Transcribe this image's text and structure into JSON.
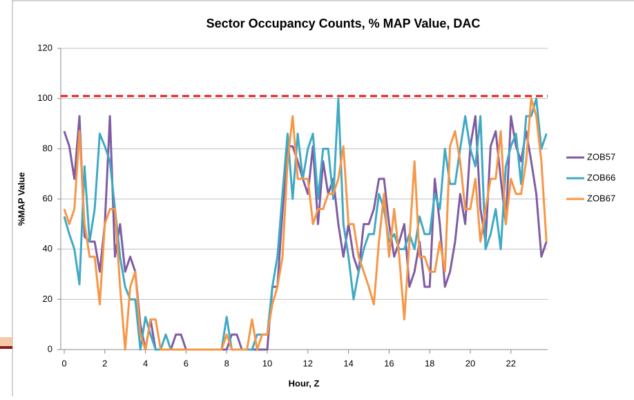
{
  "chart_data": {
    "type": "line",
    "title": "Sector Occupancy Counts, % MAP Value, DAC",
    "x_label": "Hour, Z",
    "y_label": "%MAP Value",
    "x": [
      0,
      0.25,
      0.5,
      0.75,
      1,
      1.25,
      1.5,
      1.75,
      2,
      2.25,
      2.5,
      2.75,
      3,
      3.25,
      3.5,
      3.75,
      4,
      4.25,
      4.5,
      4.75,
      5,
      5.25,
      5.5,
      5.75,
      6,
      6.25,
      6.5,
      6.75,
      7,
      7.25,
      7.5,
      7.75,
      8,
      8.25,
      8.5,
      8.75,
      9,
      9.25,
      9.5,
      9.75,
      10,
      10.25,
      10.5,
      10.75,
      11,
      11.25,
      11.5,
      11.75,
      12,
      12.25,
      12.5,
      12.75,
      13,
      13.25,
      13.5,
      13.75,
      14,
      14.25,
      14.5,
      14.75,
      15,
      15.25,
      15.5,
      15.75,
      16,
      16.25,
      16.5,
      16.75,
      17,
      17.25,
      17.5,
      17.75,
      18,
      18.25,
      18.5,
      18.75,
      19,
      19.25,
      19.5,
      19.75,
      20,
      20.25,
      20.5,
      20.75,
      21,
      21.25,
      21.5,
      21.75,
      22,
      22.25,
      22.5,
      22.75,
      23,
      23.25,
      23.5,
      23.75
    ],
    "series": [
      {
        "name": "ZOB57",
        "color": "#7e5ca3",
        "values": [
          87,
          81,
          68,
          93,
          45,
          43,
          43,
          31,
          50,
          93,
          37,
          50,
          31,
          37,
          31,
          10,
          0,
          12,
          0,
          0,
          0,
          0,
          6,
          6,
          0,
          0,
          0,
          0,
          0,
          0,
          0,
          0,
          0,
          6,
          6,
          0,
          0,
          0,
          0,
          0,
          0,
          25,
          25,
          55,
          81,
          81,
          75,
          68,
          62,
          81,
          50,
          75,
          62,
          68,
          50,
          37,
          50,
          37,
          31,
          50,
          50,
          56,
          68,
          68,
          50,
          37,
          43,
          50,
          25,
          31,
          43,
          25,
          25,
          68,
          50,
          25,
          31,
          43,
          62,
          50,
          81,
          93,
          56,
          43,
          81,
          87,
          68,
          50,
          93,
          81,
          75,
          87,
          75,
          62,
          37,
          43
        ]
      },
      {
        "name": "ZOB66",
        "color": "#3fa9c4",
        "values": [
          53,
          46,
          40,
          26,
          73,
          43,
          56,
          86,
          81,
          75,
          56,
          37,
          25,
          20,
          20,
          0,
          13,
          6,
          0,
          0,
          6,
          0,
          0,
          0,
          0,
          0,
          0,
          0,
          0,
          0,
          0,
          0,
          13,
          0,
          0,
          0,
          0,
          0,
          6,
          6,
          6,
          25,
          37,
          62,
          86,
          60,
          86,
          68,
          80,
          86,
          60,
          80,
          80,
          60,
          100,
          50,
          37,
          20,
          31,
          40,
          46,
          46,
          62,
          56,
          43,
          46,
          40,
          40,
          46,
          40,
          53,
          46,
          46,
          62,
          56,
          80,
          66,
          66,
          80,
          93,
          80,
          73,
          93,
          40,
          46,
          56,
          40,
          73,
          81,
          86,
          66,
          93,
          93,
          100,
          80,
          86
        ]
      },
      {
        "name": "ZOB67",
        "color": "#f79646",
        "values": [
          56,
          50,
          56,
          87,
          50,
          37,
          37,
          18,
          50,
          56,
          56,
          25,
          0,
          25,
          31,
          6,
          0,
          12,
          12,
          0,
          0,
          0,
          0,
          0,
          0,
          0,
          0,
          0,
          0,
          0,
          0,
          0,
          6,
          0,
          0,
          0,
          0,
          12,
          0,
          6,
          6,
          18,
          25,
          37,
          75,
          93,
          68,
          68,
          68,
          50,
          56,
          56,
          62,
          62,
          68,
          81,
          50,
          50,
          37,
          31,
          25,
          18,
          43,
          62,
          37,
          56,
          37,
          12,
          43,
          75,
          37,
          37,
          31,
          31,
          43,
          31,
          81,
          87,
          75,
          56,
          56,
          68,
          43,
          56,
          68,
          68,
          87,
          50,
          68,
          62,
          62,
          75,
          100,
          93,
          75,
          43
        ]
      }
    ],
    "reference_line": {
      "value": 101,
      "color": "#e31a1c"
    },
    "xlim": [
      -0.17,
      23.81
    ],
    "xticks": [
      0,
      2,
      4,
      6,
      8,
      10,
      12,
      14,
      16,
      18,
      20,
      22
    ],
    "ylim": [
      0,
      120
    ],
    "yticks": [
      0,
      20,
      40,
      60,
      80,
      100,
      120
    ],
    "grid": true,
    "legend": "right"
  }
}
